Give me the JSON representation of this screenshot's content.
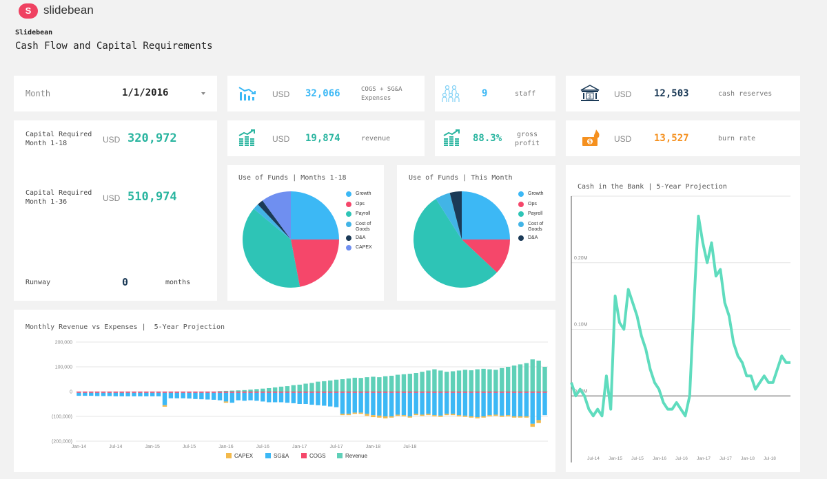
{
  "brand": {
    "logo_letter": "S",
    "name": "slidebean"
  },
  "header": {
    "company": "Slidebean",
    "title": "Cash Flow and Capital Requirements"
  },
  "month_selector": {
    "label": "Month",
    "value": "1/1/2016"
  },
  "kpis": {
    "expenses": {
      "currency": "USD",
      "value": "32,066",
      "label": "COGS + SG&A Expenses"
    },
    "staff": {
      "value": "9",
      "label": "staff"
    },
    "cash_reserves": {
      "currency": "USD",
      "value": "12,503",
      "label": "cash reserves"
    },
    "revenue": {
      "currency": "USD",
      "value": "19,874",
      "label": "revenue"
    },
    "gross_profit": {
      "value": "88.3%",
      "label": "gross profit"
    },
    "burn_rate": {
      "currency": "USD",
      "value": "13,527",
      "label": "burn rate"
    }
  },
  "capital": {
    "m18": {
      "label": "Capital Required Month 1-18",
      "currency": "USD",
      "value": "320,972"
    },
    "m36": {
      "label": "Capital Required Month 1-36",
      "currency": "USD",
      "value": "510,974"
    },
    "runway": {
      "label": "Runway",
      "value": "0",
      "unit": "months"
    }
  },
  "colors": {
    "teal": "#2ec4b6",
    "blue": "#3cb8f5",
    "red": "#f5476a",
    "orange": "#f5901e",
    "dark": "#1b3a57",
    "capex": "#f3b94b",
    "green_text": "#2bb5a0"
  },
  "chart_data": [
    {
      "type": "pie",
      "title": "Use of Funds | Months 1-18",
      "labels": [
        "Growth",
        "Ops",
        "Payroll",
        "Cost of Goods",
        "D&A",
        "CAPEX"
      ],
      "colors": [
        "#3cb8f5",
        "#f5476a",
        "#2ec4b6",
        "#42b4e6",
        "#1b3a57",
        "#6f8ff0"
      ],
      "values": [
        25,
        22,
        39,
        2,
        2,
        10
      ]
    },
    {
      "type": "pie",
      "title": "Use of Funds | This Month",
      "labels": [
        "Growth",
        "Ops",
        "Payroll",
        "Cost of Goods",
        "D&A"
      ],
      "colors": [
        "#3cb8f5",
        "#f5476a",
        "#2ec4b6",
        "#42b4e6",
        "#1b3a57"
      ],
      "values": [
        25,
        12,
        54,
        5,
        4
      ]
    },
    {
      "type": "bar",
      "title": "Monthly Revenue vs Expenses |  5-Year Projection",
      "x_tick_labels": [
        "Jan-14",
        "Jul-14",
        "Jan-15",
        "Jul-15",
        "Jan-16",
        "Jul-16",
        "Jan-17",
        "Jul-17",
        "Jan-18",
        "Jul-18"
      ],
      "y_tick_labels": [
        "200,000",
        "100,000",
        "0",
        "(100,000)",
        "(200,000)"
      ],
      "ylim": [
        -200000,
        200000
      ],
      "legend": [
        "CAPEX",
        "SG&A",
        "COGS",
        "Revenue"
      ],
      "series": [
        {
          "name": "Revenue",
          "values": [
            0,
            0,
            0,
            0,
            0,
            0,
            0,
            0,
            0,
            0,
            0,
            0,
            0,
            0,
            0,
            0,
            0,
            0,
            0,
            0,
            0,
            0,
            0,
            2000,
            3000,
            4000,
            5000,
            6000,
            8000,
            10000,
            12000,
            14000,
            17000,
            20000,
            22000,
            26000,
            28000,
            32000,
            35000,
            40000,
            42000,
            45000,
            48000,
            50000,
            53000,
            56000,
            55000,
            58000,
            60000,
            58000,
            62000,
            64000,
            68000,
            70000,
            72000,
            75000,
            80000,
            85000,
            90000,
            85000,
            80000,
            82000,
            85000,
            88000,
            86000,
            90000,
            92000,
            90000,
            88000,
            95000,
            100000,
            105000,
            110000,
            115000,
            130000,
            125000,
            100000
          ]
        },
        {
          "name": "SG&A",
          "values": [
            -12000,
            -12000,
            -12000,
            -13000,
            -13000,
            -13000,
            -14000,
            -14000,
            -14000,
            -14000,
            -14000,
            -14000,
            -14000,
            -14000,
            -50000,
            -22000,
            -22000,
            -22000,
            -23000,
            -25000,
            -26000,
            -27000,
            -28000,
            -30000,
            -35000,
            -40000,
            -30000,
            -32000,
            -30000,
            -32000,
            -35000,
            -38000,
            -38000,
            -38000,
            -40000,
            -42000,
            -45000,
            -45000,
            -48000,
            -50000,
            -52000,
            -55000,
            -58000,
            -85000,
            -85000,
            -80000,
            -80000,
            -85000,
            -90000,
            -92000,
            -95000,
            -95000,
            -88000,
            -90000,
            -95000,
            -85000,
            -88000,
            -85000,
            -90000,
            -92000,
            -85000,
            -85000,
            -90000,
            -92000,
            -95000,
            -98000,
            -95000,
            -90000,
            -88000,
            -92000,
            -90000,
            -95000,
            -95000,
            -95000,
            -125000,
            -110000,
            -90000
          ]
        },
        {
          "name": "CAPEX",
          "values": [
            0,
            0,
            0,
            0,
            0,
            0,
            0,
            0,
            0,
            0,
            0,
            0,
            0,
            0,
            -6000,
            0,
            0,
            0,
            0,
            0,
            0,
            0,
            0,
            0,
            -5000,
            0,
            0,
            0,
            0,
            0,
            0,
            0,
            0,
            0,
            0,
            0,
            0,
            0,
            0,
            0,
            0,
            0,
            0,
            -5000,
            -5000,
            -5000,
            -5000,
            -8000,
            -8000,
            -8000,
            -8000,
            -5000,
            -5000,
            -5000,
            -5000,
            -5000,
            -5000,
            -5000,
            -5000,
            -5000,
            -5000,
            -5000,
            -5000,
            -5000,
            -5000,
            -5000,
            -5000,
            -5000,
            -5000,
            -5000,
            -5000,
            -5000,
            -5000,
            -5000,
            -12000,
            -12000,
            0
          ]
        },
        {
          "name": "COGS",
          "values": [
            -5000,
            -5000,
            -5000,
            -5000,
            -5000,
            -5000,
            -5000,
            -5000,
            -5000,
            -5000,
            -5000,
            -5000,
            -5000,
            -5000,
            -5000,
            -5000,
            -5000,
            -5000,
            -5000,
            -5000,
            -5000,
            -5000,
            -5000,
            -5000,
            -5000,
            -5000,
            -5000,
            -5000,
            -5000,
            -5000,
            -5000,
            -5000,
            -5000,
            -5000,
            -5000,
            -5000,
            -5000,
            -5000,
            -5000,
            -5000,
            -5000,
            -5000,
            -5000,
            -5000,
            -5000,
            -5000,
            -5000,
            -5000,
            -5000,
            -5000,
            -5000,
            -5000,
            -5000,
            -5000,
            -5000,
            -5000,
            -5000,
            -5000,
            -5000,
            -5000,
            -5000,
            -5000,
            -5000,
            -5000,
            -5000,
            -5000,
            -5000,
            -5000,
            -5000,
            -5000,
            -5000,
            -5000,
            -5000,
            -5000,
            -5000,
            -5000,
            -5000
          ]
        }
      ]
    },
    {
      "type": "line",
      "title": "Cash in the Bank | 5-Year Projection",
      "x_tick_labels": [
        "Jul-14",
        "Jan-15",
        "Jul-15",
        "Jan-16",
        "Jul-16",
        "Jan-17",
        "Jul-17",
        "Jan-18",
        "Jul-18"
      ],
      "y_tick_labels": [
        "0.20M",
        "0.10M",
        "0.00M"
      ],
      "ylim": [
        -0.1,
        0.3
      ],
      "series": [
        {
          "name": "Cash",
          "values": [
            0.02,
            0.0,
            0.01,
            0.0,
            -0.02,
            -0.03,
            -0.02,
            -0.03,
            0.03,
            -0.02,
            0.15,
            0.11,
            0.1,
            0.16,
            0.14,
            0.12,
            0.09,
            0.07,
            0.04,
            0.02,
            0.01,
            -0.01,
            -0.02,
            -0.02,
            -0.01,
            -0.02,
            -0.03,
            0.0,
            0.14,
            0.27,
            0.23,
            0.2,
            0.23,
            0.18,
            0.19,
            0.14,
            0.12,
            0.08,
            0.06,
            0.05,
            0.03,
            0.03,
            0.01,
            0.02,
            0.03,
            0.02,
            0.02,
            0.04,
            0.06,
            0.05,
            0.05
          ]
        }
      ]
    }
  ],
  "bar_legend_colors": [
    "#f3b94b",
    "#3cb8f5",
    "#f5476a",
    "#5fd0b8"
  ]
}
